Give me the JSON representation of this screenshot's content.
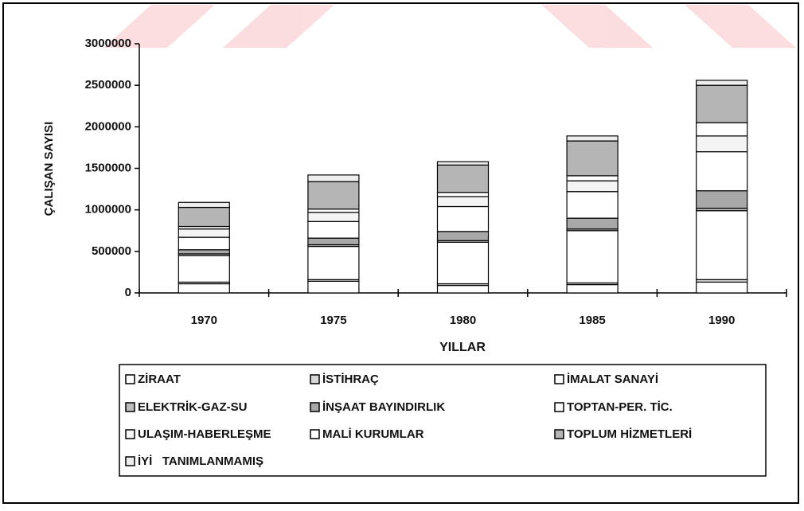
{
  "chart_data": {
    "type": "stacked_bar",
    "categories": [
      "1970",
      "1975",
      "1980",
      "1985",
      "1990"
    ],
    "x_label": "YILLAR",
    "y_label": "ÇALIŞAN SAYISI",
    "ylim": [
      0,
      3000000
    ],
    "yticks": [
      0,
      500000,
      1000000,
      1500000,
      2000000,
      2500000,
      3000000
    ],
    "series": [
      {
        "name": "ZİRAAT",
        "color": "#ffffff",
        "values": [
          110000,
          140000,
          90000,
          100000,
          130000
        ]
      },
      {
        "name": "İSTİHRAÇ",
        "color": "#d8d8d8",
        "values": [
          20000,
          20000,
          20000,
          20000,
          30000
        ]
      },
      {
        "name": "İMALAT SANAYİ",
        "color": "#ffffff",
        "values": [
          320000,
          400000,
          500000,
          630000,
          830000
        ]
      },
      {
        "name": "ELEKTRİK-GAZ-SU",
        "color": "#bdbdbd",
        "values": [
          20000,
          20000,
          20000,
          20000,
          30000
        ]
      },
      {
        "name": "İNŞAAT BAYINDIRLIK",
        "color": "#a8a8a8",
        "values": [
          50000,
          80000,
          110000,
          130000,
          210000
        ]
      },
      {
        "name": "TOPTAN-PER. TİC.",
        "color": "#ffffff",
        "values": [
          150000,
          200000,
          300000,
          320000,
          470000
        ]
      },
      {
        "name": "ULAŞIM-HABERLEŞME",
        "color": "#f4f4f4",
        "values": [
          100000,
          110000,
          120000,
          130000,
          190000
        ]
      },
      {
        "name": "MALİ KURUMLAR",
        "color": "#ffffff",
        "values": [
          30000,
          40000,
          50000,
          60000,
          160000
        ]
      },
      {
        "name": "TOPLUM HİZMETLERİ",
        "color": "#b5b5b5",
        "values": [
          230000,
          330000,
          330000,
          420000,
          450000
        ]
      },
      {
        "name": "İYİ   TANIMLANMAMIŞ",
        "color": "#eeeeee",
        "values": [
          60000,
          80000,
          40000,
          60000,
          60000
        ]
      }
    ]
  }
}
